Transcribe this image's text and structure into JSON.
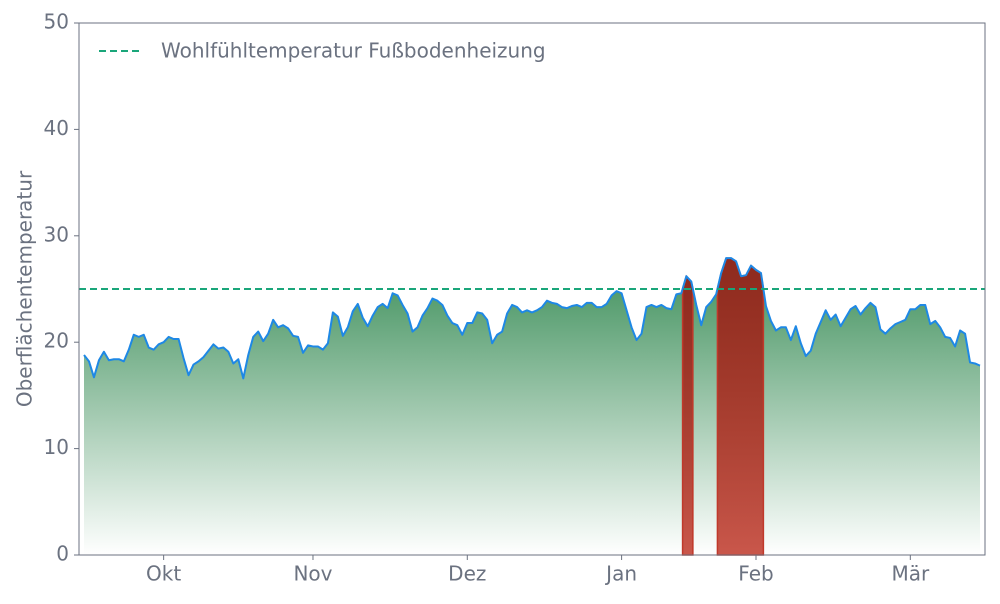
{
  "chart_data": {
    "type": "area",
    "y_label": "Oberflächentemperatur",
    "categories": [
      null,
      null,
      null,
      null,
      null,
      null,
      null,
      null,
      null,
      null,
      null,
      null,
      null,
      null,
      null,
      null,
      "Okt",
      null,
      null,
      null,
      null,
      null,
      null,
      null,
      null,
      null,
      null,
      null,
      null,
      null,
      null,
      null,
      null,
      null,
      null,
      null,
      null,
      null,
      null,
      null,
      null,
      null,
      null,
      null,
      null,
      null,
      "Nov",
      null,
      null,
      null,
      null,
      null,
      null,
      null,
      null,
      null,
      null,
      null,
      null,
      null,
      null,
      null,
      null,
      null,
      null,
      null,
      null,
      null,
      null,
      null,
      null,
      null,
      null,
      null,
      null,
      null,
      null,
      "Dez",
      null,
      null,
      null,
      null,
      null,
      null,
      null,
      null,
      null,
      null,
      null,
      null,
      null,
      null,
      null,
      null,
      null,
      null,
      null,
      null,
      null,
      null,
      null,
      null,
      null,
      null,
      null,
      null,
      null,
      null,
      "Jan",
      null,
      null,
      null,
      null,
      null,
      null,
      null,
      null,
      null,
      null,
      null,
      null,
      null,
      null,
      null,
      null,
      null,
      null,
      null,
      null,
      null,
      null,
      null,
      null,
      null,
      null,
      "Feb",
      null,
      null,
      null,
      null,
      null,
      null,
      null,
      null,
      null,
      null,
      null,
      null,
      null,
      null,
      null,
      null,
      null,
      null,
      null,
      null,
      null,
      null,
      null,
      null,
      null,
      null,
      null,
      null,
      null,
      null,
      "Mär",
      null,
      null,
      null,
      null,
      null,
      null,
      null,
      null,
      null,
      null,
      null,
      null,
      null,
      null
    ],
    "values": [
      18.8,
      18.2,
      16.7,
      18.3,
      19.1,
      18.3,
      18.4,
      18.4,
      18.2,
      19.3,
      20.7,
      20.5,
      20.7,
      19.5,
      19.3,
      19.8,
      20.0,
      20.5,
      20.3,
      20.3,
      18.5,
      16.9,
      17.9,
      18.2,
      18.6,
      19.2,
      19.8,
      19.4,
      19.5,
      19.1,
      18.0,
      18.4,
      16.6,
      18.8,
      20.5,
      21.0,
      20.1,
      20.8,
      22.1,
      21.4,
      21.6,
      21.3,
      20.6,
      20.5,
      19.0,
      19.7,
      19.6,
      19.6,
      19.3,
      19.9,
      22.8,
      22.4,
      20.6,
      21.4,
      22.9,
      23.6,
      22.3,
      21.5,
      22.5,
      23.3,
      23.6,
      23.2,
      24.6,
      24.4,
      23.5,
      22.7,
      21.0,
      21.4,
      22.5,
      23.2,
      24.1,
      23.9,
      23.5,
      22.5,
      21.8,
      21.6,
      20.7,
      21.8,
      21.8,
      22.8,
      22.7,
      22.1,
      19.9,
      20.7,
      21.0,
      22.7,
      23.5,
      23.3,
      22.8,
      23.0,
      22.8,
      23.0,
      23.3,
      23.9,
      23.7,
      23.6,
      23.3,
      23.2,
      23.4,
      23.5,
      23.3,
      23.7,
      23.7,
      23.3,
      23.3,
      23.6,
      24.4,
      24.8,
      24.6,
      23.0,
      21.4,
      20.2,
      20.8,
      23.3,
      23.5,
      23.3,
      23.5,
      23.2,
      23.1,
      24.5,
      24.6,
      26.2,
      25.7,
      23.5,
      21.6,
      23.3,
      23.8,
      24.5,
      26.5,
      27.9,
      27.9,
      27.6,
      26.2,
      26.3,
      27.2,
      26.8,
      26.5,
      23.4,
      22.0,
      21.1,
      21.4,
      21.4,
      20.2,
      21.5,
      19.9,
      18.7,
      19.2,
      20.8,
      21.9,
      23.0,
      22.1,
      22.6,
      21.5,
      22.3,
      23.1,
      23.4,
      22.6,
      23.2,
      23.7,
      23.3,
      21.2,
      20.8,
      21.3,
      21.7,
      21.9,
      22.1,
      23.1,
      23.1,
      23.5,
      23.5,
      21.7,
      22.0,
      21.4,
      20.5,
      20.4,
      19.6,
      21.1,
      20.8,
      18.1,
      18.0,
      17.8
    ],
    "line_color": "#1e88e5",
    "area_color": "#3d8f5a",
    "highlight_color": "#c0392b",
    "reference_line": {
      "value": 25,
      "label": "Wohlfühltemperatur Fußbodenheizung",
      "color": "#1aa67a"
    },
    "ylim": [
      0,
      50
    ],
    "yticks": [
      0,
      10,
      20,
      30,
      40,
      50
    ],
    "grid": false
  }
}
